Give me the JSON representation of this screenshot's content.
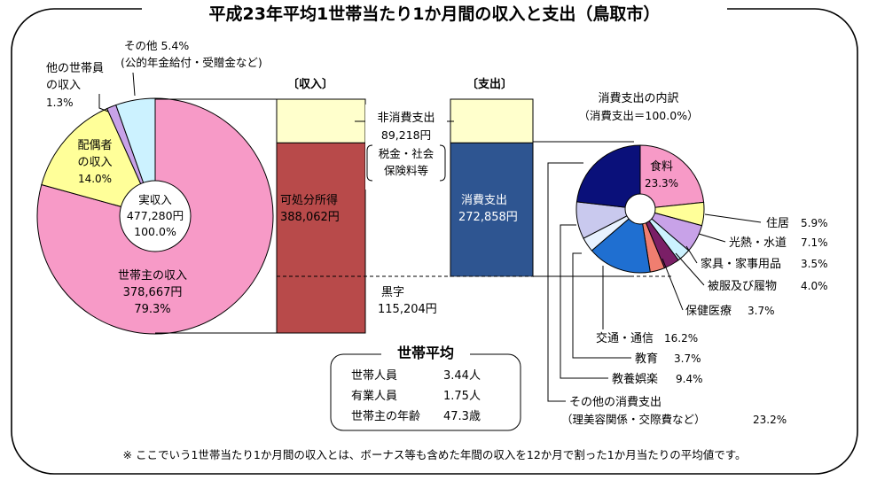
{
  "title": "平成23年平均1世帯当たり1か月間の収入と支出（鳥取市）",
  "chart_data": [
    {
      "type": "pie",
      "name": "income-breakdown",
      "center_label": [
        "実収入",
        "477,280円",
        "100.0%"
      ],
      "slices": [
        {
          "label_lines": [
            "世帯主の収入",
            "378,667円",
            "79.3%"
          ],
          "value": 79.3,
          "color": "#f79ac7"
        },
        {
          "label_lines": [
            "配偶者",
            "の収入",
            "14.0%"
          ],
          "value": 14.0,
          "color": "#ffff99"
        },
        {
          "label_lines": [
            "他の世帯員",
            "の収入",
            "1.3%"
          ],
          "value": 1.3,
          "color": "#c8a2e8"
        },
        {
          "label_lines": [
            "その他 5.4%",
            "(公的年金給付・受贈金など)"
          ],
          "value": 5.4,
          "color": "#ccf2ff"
        }
      ]
    },
    {
      "type": "bar",
      "name": "income-expenditure-bars",
      "headers": {
        "income": "〔収入〕",
        "expenditure": "〔支出〕"
      },
      "income": [
        {
          "label_lines": [
            "非消費支出",
            "89,218円",
            "税金・社会",
            "保険料等"
          ],
          "value": 89218,
          "color": "#ffffcc"
        },
        {
          "label_lines": [
            "可処分所得",
            "388,062円"
          ],
          "value": 388062,
          "color": "#b84a4a"
        }
      ],
      "expenditure": [
        {
          "label_lines": [
            "非消費支出"
          ],
          "value": 89218,
          "color": "#ffffcc"
        },
        {
          "label_lines": [
            "消費支出",
            "272,858円"
          ],
          "value": 272858,
          "color": "#2e5591"
        },
        {
          "label_lines": [
            "黒字",
            "115,204円"
          ],
          "value": 115204,
          "color": "#ffffff"
        }
      ]
    },
    {
      "type": "pie",
      "name": "consumption-breakdown",
      "title_lines": [
        "消費支出の内訳",
        "（消費支出＝100.0%）"
      ],
      "slices": [
        {
          "label": "食料",
          "value_text": "23.3%",
          "value": 23.3,
          "color": "#f79ac7"
        },
        {
          "label": "住居",
          "value_text": "5.9%",
          "value": 5.9,
          "color": "#ffff99"
        },
        {
          "label": "光熱・水道",
          "value_text": "7.1%",
          "value": 7.1,
          "color": "#c8a2e8"
        },
        {
          "label": "家具・家事用品",
          "value_text": "3.5%",
          "value": 3.5,
          "color": "#ccf2ff"
        },
        {
          "label": "被服及び履物",
          "value_text": "4.0%",
          "value": 4.0,
          "color": "#7a1f66"
        },
        {
          "label": "保健医療",
          "value_text": "3.7%",
          "value": 3.7,
          "color": "#f07e70"
        },
        {
          "label": "交通・通信",
          "value_text": "16.2%",
          "value": 16.2,
          "color": "#1f6fd1"
        },
        {
          "label": "教育",
          "value_text": "3.7%",
          "value": 3.7,
          "color": "#e8f2ff"
        },
        {
          "label": "教養娯楽",
          "value_text": "9.4%",
          "value": 9.4,
          "color": "#c9c9ee"
        },
        {
          "label": "その他の消費支出",
          "sub_label": "（理美容関係・交際費など）",
          "value_text": "23.2%",
          "value": 23.2,
          "color": "#0a107a"
        }
      ]
    }
  ],
  "household": {
    "title": "世帯平均",
    "rows": [
      {
        "label": "世帯人員",
        "value": "3.44人"
      },
      {
        "label": "有業人員",
        "value": "1.75人"
      },
      {
        "label": "世帯主の年齢",
        "value": "47.3歳"
      }
    ]
  },
  "footnote": "※ ここでいう1世帯当たり1か月間の収入とは、ボーナス等も含めた年間の収入を12か月で割った1か月当たりの平均値です。"
}
